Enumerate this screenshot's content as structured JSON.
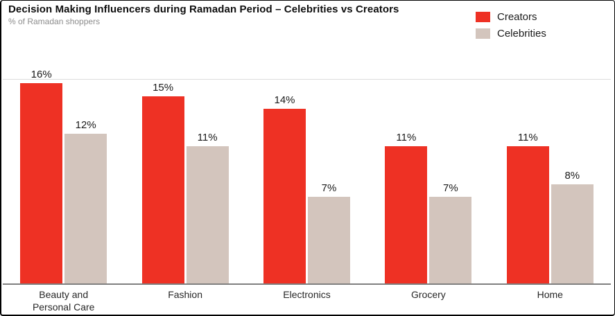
{
  "header": {
    "title": "Decision Making Influencers during Ramadan Period – Celebrities vs Creators",
    "subtitle": "% of Ramadan shoppers"
  },
  "colors": {
    "creators_red": "#EE3124",
    "celebrities_beige": "#D3C5BD",
    "axis_gray": "#7F7F7F",
    "gridline_gray": "#DCDCDC",
    "subtitle_gray": "#8C8C8C",
    "frame_border": "#000000"
  },
  "chart_data": {
    "type": "bar",
    "title": "Decision Making Influencers during Ramadan Period – Celebrities vs Creators",
    "subtitle": "% of Ramadan shoppers",
    "xlabel": "",
    "ylabel": "% of Ramadan shoppers",
    "categories": [
      "Beauty and Personal Care",
      "Fashion",
      "Electronics",
      "Grocery",
      "Home"
    ],
    "series": [
      {
        "name": "Creators",
        "color": "#EE3124",
        "values": [
          16,
          15,
          14,
          11,
          11
        ]
      },
      {
        "name": "Celebrities",
        "color": "#D3C5BD",
        "values": [
          12,
          11,
          7,
          7,
          8
        ]
      }
    ],
    "value_suffix": "%",
    "value_labels_shown": true,
    "ylim": [
      0,
      16.3
    ],
    "grid": "top-line-only",
    "y_axis_ticks_shown": false,
    "legend_position": "top-right"
  }
}
